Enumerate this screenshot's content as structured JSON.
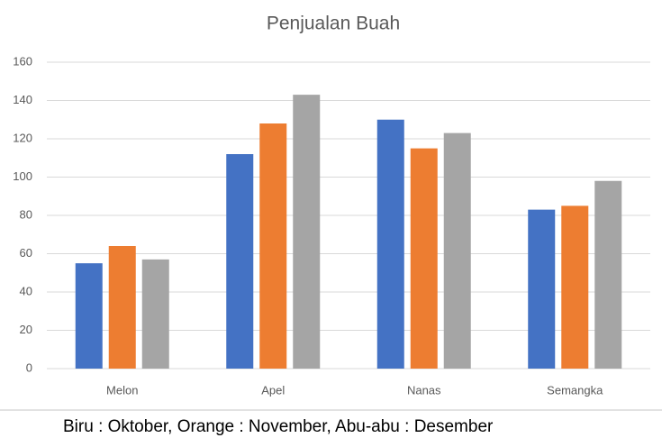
{
  "chart_data": {
    "type": "bar",
    "title": "Penjualan Buah",
    "categories": [
      "Melon",
      "Apel",
      "Nanas",
      "Semangka"
    ],
    "series": [
      {
        "color": "#4472c4",
        "values": [
          55,
          112,
          130,
          83
        ]
      },
      {
        "color": "#ed7d31",
        "values": [
          64,
          128,
          115,
          85
        ]
      },
      {
        "color": "#a5a5a5",
        "values": [
          57,
          143,
          123,
          98
        ]
      }
    ],
    "ylim": [
      0,
      160
    ],
    "yticks": [
      0,
      20,
      40,
      60,
      80,
      100,
      120,
      140,
      160
    ],
    "grid": true,
    "caption": "Biru : Oktober, Orange : November, Abu-abu : Desember"
  }
}
